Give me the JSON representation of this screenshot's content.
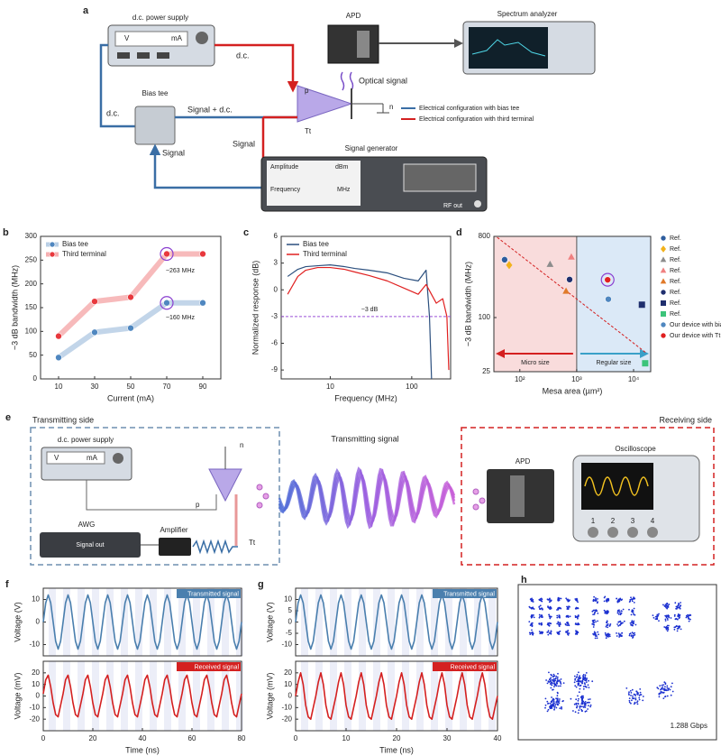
{
  "figure_a": {
    "label": "a",
    "power_supply": "d.c. power supply",
    "volt": "V",
    "amp": "mA",
    "dc_red": "d.c.",
    "apd": "APD",
    "optical": "Optical signal",
    "spectrum": "Spectrum analyzer",
    "p": "p",
    "n": "n",
    "tt": "Tt",
    "bias_tee": "Bias tee",
    "dc_green": "d.c.",
    "signal_dc": "Signal + d.c.",
    "signal_red": "Signal",
    "signal_blue": "Signal",
    "generator": "Signal generator",
    "amplitude": "Amplitude",
    "dbm": "dBm",
    "frequency": "Frequency",
    "mhz": "MHz",
    "rf_out": "RF out",
    "legend": [
      "Electrical configuration with bias tee",
      "Electrical configuration with third terminal"
    ]
  },
  "figure_e": {
    "label": "e",
    "transmitting_side": "Transmitting side",
    "power_supply": "d.c. power supply",
    "volt": "V",
    "amp": "mA",
    "n": "n",
    "p": "p",
    "tt": "Tt",
    "awg": "AWG",
    "signal_out": "Signal out",
    "amplifier": "Amplifier",
    "transmitting_signal": "Transmitting signal",
    "receiving_side": "Receiving side",
    "apd": "APD",
    "oscilloscope": "Oscilloscope",
    "channels": [
      "1",
      "2",
      "3",
      "4"
    ]
  },
  "chart_data": [
    {
      "type": "line",
      "label": "b",
      "xlabel": "Current (mA)",
      "ylabel": "−3 dB bandwidth (MHz)",
      "xlim": [
        0,
        100
      ],
      "xticks": [
        10,
        30,
        50,
        70,
        90
      ],
      "ylim": [
        0,
        300
      ],
      "yticks": [
        0,
        50,
        100,
        150,
        200,
        250,
        300
      ],
      "legend": "upper left",
      "markers": true,
      "annotations": [
        "~263 MHz",
        "~160 MHz"
      ],
      "series": [
        {
          "name": "Bias tee",
          "color": "#4f87c0",
          "x": [
            10,
            30,
            50,
            70,
            90
          ],
          "values": [
            45,
            98,
            107,
            160,
            160
          ]
        },
        {
          "name": "Third terminal",
          "color": "#e8383d",
          "x": [
            10,
            30,
            50,
            70,
            90
          ],
          "values": [
            90,
            163,
            172,
            263,
            263
          ]
        }
      ]
    },
    {
      "type": "line",
      "label": "c",
      "xlabel": "Frequency (MHz)",
      "ylabel": "Normalized response (dB)",
      "xlog": true,
      "xlim": [
        2.5,
        300
      ],
      "xticks": [
        10,
        100
      ],
      "ylim": [
        -10,
        6
      ],
      "yticks": [
        -9,
        -6,
        -3,
        0,
        3,
        6
      ],
      "legend": "upper left",
      "hline": -3,
      "annotations": [
        "−3 dB"
      ],
      "series": [
        {
          "name": "Bias tee",
          "color": "#2b4f7e",
          "x": [
            3,
            4,
            5,
            7,
            10,
            15,
            20,
            30,
            50,
            80,
            120,
            150,
            165,
            175
          ],
          "values": [
            1.5,
            2.3,
            2.6,
            2.7,
            2.8,
            2.6,
            2.4,
            2.2,
            1.9,
            1.3,
            1.0,
            2.2,
            -3,
            -10
          ]
        },
        {
          "name": "Third terminal",
          "color": "#e02020",
          "x": [
            3,
            4,
            5,
            7,
            10,
            15,
            20,
            30,
            50,
            80,
            120,
            150,
            200,
            240,
            270,
            285
          ],
          "values": [
            -0.5,
            1.5,
            2.2,
            2.5,
            2.5,
            2.3,
            2.0,
            1.6,
            1.0,
            0.2,
            -0.5,
            0.6,
            -1.5,
            -1.0,
            -3,
            -9
          ]
        }
      ]
    },
    {
      "type": "scatter",
      "label": "d",
      "xlabel": "Mesa area (µm²)",
      "ylabel": "−3 dB bandwidth (MHz)",
      "xlog": true,
      "ylog": true,
      "xlim": [
        35,
        20000
      ],
      "xticks": [
        {
          "value": 100,
          "label": "10²"
        },
        {
          "value": 1000,
          "label": "10³"
        },
        {
          "value": 10000,
          "label": "10⁴"
        }
      ],
      "ylim": [
        25,
        800
      ],
      "yticks": [
        25,
        100,
        800
      ],
      "legend": "right",
      "vline": 1000,
      "region_labels": [
        "Micro size",
        "Regular size"
      ],
      "trend": {
        "x": [
          40,
          17000
        ],
        "values": [
          780,
          40
        ]
      },
      "series": [
        {
          "name": "Ref.",
          "color": "#2e5d9e",
          "marker": "circle",
          "x": [
            54
          ],
          "values": [
            440
          ]
        },
        {
          "name": "Ref.",
          "color": "#f2b21b",
          "marker": "diamond",
          "x": [
            65
          ],
          "values": [
            383
          ]
        },
        {
          "name": "Ref.",
          "color": "#8c8c8c",
          "marker": "triangle",
          "x": [
            340
          ],
          "values": [
            390
          ]
        },
        {
          "name": "Ref.",
          "color": "#f08080",
          "marker": "triangle",
          "x": [
            805
          ],
          "values": [
            471
          ]
        },
        {
          "name": "Ref.",
          "color": "#e07a2a",
          "marker": "triangle",
          "x": [
            650
          ],
          "values": [
            196
          ]
        },
        {
          "name": "Ref.",
          "color": "#1f2f6e",
          "marker": "circle",
          "x": [
            750
          ],
          "values": [
            265
          ]
        },
        {
          "name": "Ref.",
          "color": "#1f2f6e",
          "marker": "square",
          "x": [
            14000
          ],
          "values": [
            139
          ]
        },
        {
          "name": "Ref.",
          "color": "#3cc47a",
          "marker": "square",
          "x": [
            16000
          ],
          "values": [
            31
          ]
        },
        {
          "name": "Our device with bias tee",
          "color": "#4f87c0",
          "marker": "circle",
          "x": [
            3600
          ],
          "values": [
            160
          ]
        },
        {
          "name": "Our device with Tt",
          "color": "#e02020",
          "marker": "circle",
          "x": [
            3500
          ],
          "values": [
            263
          ]
        }
      ]
    },
    {
      "type": "line",
      "label": "f",
      "ylabel": "Voltage (V)",
      "tag": "Transmitted signal",
      "xlim": [
        0,
        80
      ],
      "ylim": [
        -15,
        15
      ],
      "yticks": [
        -10,
        0,
        10
      ],
      "series": [
        {
          "name": "Transmitted signal",
          "color": "#4a7fae",
          "x": [
            0,
            1,
            2,
            3,
            4,
            5,
            6,
            7,
            8,
            9,
            10,
            11,
            12,
            13,
            14,
            15,
            16,
            17,
            18,
            19,
            20,
            21,
            22,
            23,
            24,
            25,
            26,
            27,
            28,
            29,
            30,
            31,
            32,
            33,
            34,
            35,
            36,
            37,
            38,
            39,
            40,
            41,
            42,
            43,
            44,
            45,
            46,
            47,
            48,
            49,
            50,
            51,
            52,
            53,
            54,
            55,
            56,
            57,
            58,
            59,
            60,
            61,
            62,
            63,
            64,
            65,
            66,
            67,
            68,
            69,
            70,
            71,
            72,
            73,
            74,
            75,
            76,
            77,
            78,
            79,
            80
          ],
          "values": [
            0,
            8.5,
            12,
            8.5,
            0,
            -8.5,
            -12,
            -8.5,
            0,
            8.5,
            12,
            8.5,
            0,
            -8.5,
            -12,
            -8.5,
            0,
            8.5,
            12,
            8.5,
            0,
            -8.5,
            -12,
            -8.5,
            0,
            8.5,
            12,
            8.5,
            0,
            -8.5,
            -12,
            -8.5,
            0,
            8.5,
            12,
            8.5,
            0,
            -8.5,
            -12,
            -8.5,
            0,
            8.5,
            12,
            8.5,
            0,
            -8.5,
            -12,
            -8.5,
            0,
            8.5,
            12,
            8.5,
            0,
            -8.5,
            -12,
            -8.5,
            0,
            8.5,
            12,
            8.5,
            0,
            -8.5,
            -12,
            -8.5,
            0,
            8.5,
            12,
            8.5,
            0,
            -8.5,
            -12,
            -8.5,
            0,
            8.5,
            12,
            8.5,
            0,
            -8.5,
            -12,
            -8.5,
            0
          ]
        }
      ]
    },
    {
      "type": "line",
      "xlabel": "Time (ns)",
      "ylabel": "Voltage (mV)",
      "tag": "Received signal",
      "xlim": [
        0,
        80
      ],
      "xticks": [
        0,
        20,
        40,
        60,
        80
      ],
      "ylim": [
        -30,
        30
      ],
      "yticks": [
        -20,
        -10,
        0,
        10,
        20
      ],
      "series": [
        {
          "name": "Received signal",
          "color": "#d42020",
          "x": [
            0,
            1,
            2,
            3,
            4,
            5,
            6,
            7,
            8,
            9,
            10,
            11,
            12,
            13,
            14,
            15,
            16,
            17,
            18,
            19,
            20,
            21,
            22,
            23,
            24,
            25,
            26,
            27,
            28,
            29,
            30,
            31,
            32,
            33,
            34,
            35,
            36,
            37,
            38,
            39,
            40,
            41,
            42,
            43,
            44,
            45,
            46,
            47,
            48,
            49,
            50,
            51,
            52,
            53,
            54,
            55,
            56,
            57,
            58,
            59,
            60,
            61,
            62,
            63,
            64,
            65,
            66,
            67,
            68,
            69,
            70,
            71,
            72,
            73,
            74,
            75,
            76,
            77,
            78,
            79,
            80
          ],
          "values": [
            2,
            14,
            18,
            8,
            -6,
            -16,
            -18,
            -8,
            2,
            14,
            18,
            8,
            -6,
            -16,
            -18,
            -8,
            2,
            14,
            18,
            8,
            -6,
            -16,
            -18,
            -8,
            2,
            14,
            18,
            8,
            -6,
            -16,
            -18,
            -8,
            2,
            14,
            18,
            8,
            -6,
            -16,
            -18,
            -8,
            2,
            14,
            18,
            8,
            -6,
            -16,
            -18,
            -8,
            2,
            14,
            18,
            8,
            -6,
            -16,
            -18,
            -8,
            2,
            14,
            18,
            8,
            -6,
            -16,
            -18,
            -8,
            2,
            14,
            18,
            8,
            -6,
            -16,
            -18,
            -8,
            2,
            14,
            18,
            8,
            -6,
            -16,
            -18,
            -8,
            2
          ]
        }
      ]
    },
    {
      "type": "line",
      "label": "g",
      "ylabel": "Voltage (V)",
      "tag": "Transmitted signal",
      "xlim": [
        0,
        40
      ],
      "ylim": [
        -15,
        15
      ],
      "yticks": [
        -10,
        -5,
        0,
        5,
        10
      ],
      "series": [
        {
          "name": "Transmitted signal",
          "color": "#4a7fae",
          "x": [
            0,
            0.5,
            1,
            1.5,
            2,
            2.5,
            3,
            3.5,
            4,
            4.5,
            5,
            5.5,
            6,
            6.5,
            7,
            7.5,
            8,
            8.5,
            9,
            9.5,
            10,
            10.5,
            11,
            11.5,
            12,
            12.5,
            13,
            13.5,
            14,
            14.5,
            15,
            15.5,
            16,
            16.5,
            17,
            17.5,
            18,
            18.5,
            19,
            19.5,
            20,
            20.5,
            21,
            21.5,
            22,
            22.5,
            23,
            23.5,
            24,
            24.5,
            25,
            25.5,
            26,
            26.5,
            27,
            27.5,
            28,
            28.5,
            29,
            29.5,
            30,
            30.5,
            31,
            31.5,
            32,
            32.5,
            33,
            33.5,
            34,
            34.5,
            35,
            35.5,
            36,
            36.5,
            37,
            37.5,
            38,
            38.5,
            39,
            39.5,
            40
          ],
          "values": [
            0,
            8.5,
            12,
            8.5,
            0,
            -8.5,
            -12,
            -8.5,
            0,
            8.5,
            12,
            8.5,
            0,
            -8.5,
            -12,
            -8.5,
            0,
            8.5,
            12,
            8.5,
            0,
            -8.5,
            -12,
            -8.5,
            0,
            8.5,
            12,
            8.5,
            0,
            -8.5,
            -12,
            -8.5,
            0,
            8.5,
            12,
            8.5,
            0,
            -8.5,
            -12,
            -8.5,
            0,
            8.5,
            12,
            8.5,
            0,
            -8.5,
            -12,
            -8.5,
            0,
            8.5,
            12,
            8.5,
            0,
            -8.5,
            -12,
            -8.5,
            0,
            8.5,
            12,
            8.5,
            0,
            -8.5,
            -12,
            -8.5,
            0,
            8.5,
            12,
            8.5,
            0,
            -8.5,
            -12,
            -8.5,
            0,
            8.5,
            12,
            8.5,
            0,
            -8.5,
            -12,
            -8.5,
            0
          ]
        }
      ]
    },
    {
      "type": "line",
      "xlabel": "Time (ns)",
      "ylabel": "Voltage (mV)",
      "tag": "Received signal",
      "xlim": [
        0,
        40
      ],
      "xticks": [
        0,
        10,
        20,
        30,
        40
      ],
      "ylim": [
        -30,
        30
      ],
      "yticks": [
        -20,
        -10,
        0,
        10,
        20
      ],
      "series": [
        {
          "name": "Received signal",
          "color": "#d42020",
          "x": [
            0,
            0.5,
            1,
            1.5,
            2,
            2.5,
            3,
            3.5,
            4,
            4.5,
            5,
            5.5,
            6,
            6.5,
            7,
            7.5,
            8,
            8.5,
            9,
            9.5,
            10,
            10.5,
            11,
            11.5,
            12,
            12.5,
            13,
            13.5,
            14,
            14.5,
            15,
            15.5,
            16,
            16.5,
            17,
            17.5,
            18,
            18.5,
            19,
            19.5,
            20,
            20.5,
            21,
            21.5,
            22,
            22.5,
            23,
            23.5,
            24,
            24.5,
            25,
            25.5,
            26,
            26.5,
            27,
            27.5,
            28,
            28.5,
            29,
            29.5,
            30,
            30.5,
            31,
            31.5,
            32,
            32.5,
            33,
            33.5,
            34,
            34.5,
            35,
            35.5,
            36,
            36.5,
            37,
            37.5,
            38,
            38.5,
            39,
            39.5,
            40
          ],
          "values": [
            0,
            12,
            20,
            10,
            -8,
            -18,
            -20,
            -10,
            0,
            12,
            20,
            10,
            -8,
            -18,
            -20,
            -10,
            0,
            12,
            20,
            10,
            -8,
            -18,
            -20,
            -10,
            0,
            12,
            20,
            10,
            -8,
            -18,
            -20,
            -10,
            0,
            12,
            20,
            10,
            -8,
            -18,
            -20,
            -10,
            0,
            12,
            20,
            10,
            -8,
            -18,
            -20,
            -10,
            0,
            12,
            20,
            10,
            -8,
            -18,
            -20,
            -10,
            0,
            12,
            20,
            10,
            -8,
            -18,
            -20,
            -10,
            0,
            12,
            20,
            10,
            -8,
            -18,
            -20,
            -10,
            0,
            12,
            20,
            10,
            -8,
            -18,
            -20,
            -10,
            0
          ]
        }
      ]
    }
  ],
  "figure_h": {
    "label": "h",
    "rate": "1.288 Gbps"
  }
}
